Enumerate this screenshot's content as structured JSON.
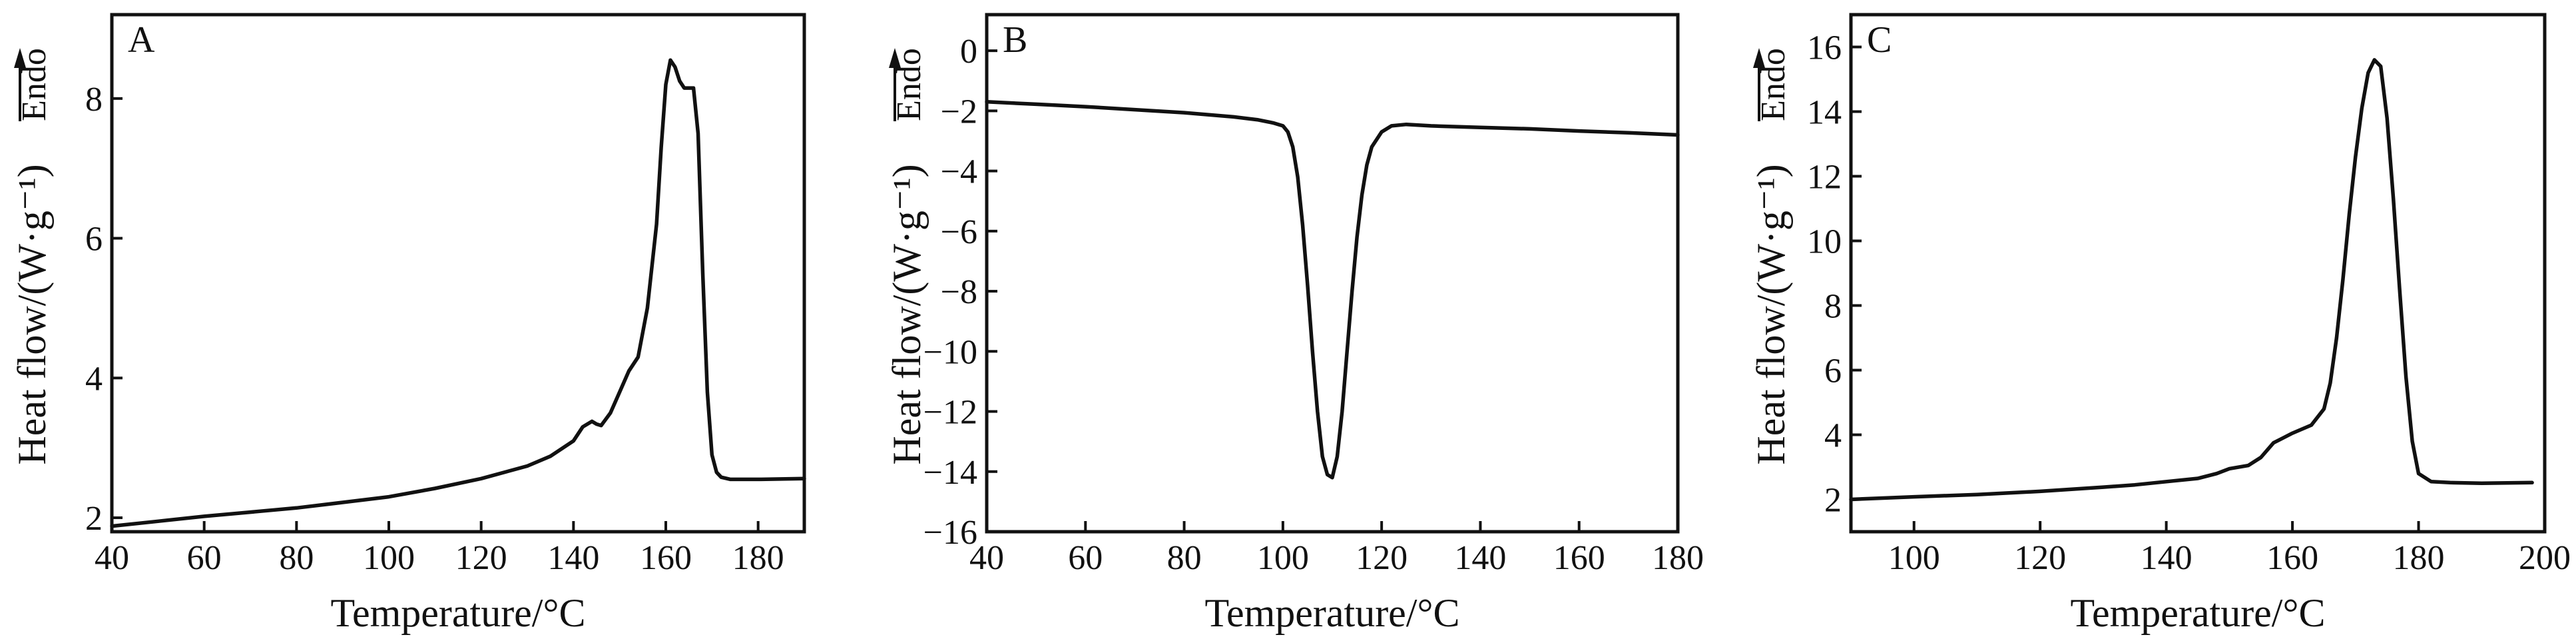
{
  "chart_data": [
    {
      "type": "line",
      "panel_label": "A",
      "xlabel": "Temperature/°C",
      "ylabel": "Heat flow/(W·g⁻¹)",
      "direction_label": "Endo",
      "xlim": [
        40,
        190
      ],
      "ylim": [
        1.8,
        9.2
      ],
      "xticks": [
        40,
        60,
        80,
        100,
        120,
        140,
        160,
        180
      ],
      "yticks": [
        2,
        4,
        6,
        8
      ],
      "grid": false,
      "series": [
        {
          "x": [
            40,
            50,
            60,
            70,
            80,
            90,
            100,
            110,
            120,
            130,
            135,
            140,
            142,
            144,
            145,
            146,
            148,
            150,
            152,
            154,
            156,
            158,
            159,
            160,
            161,
            162,
            163,
            164,
            166,
            167,
            168,
            169,
            170,
            171,
            172,
            174,
            180,
            190
          ],
          "y": [
            1.88,
            1.95,
            2.02,
            2.08,
            2.14,
            2.22,
            2.3,
            2.42,
            2.56,
            2.74,
            2.88,
            3.1,
            3.3,
            3.38,
            3.34,
            3.32,
            3.5,
            3.8,
            4.1,
            4.3,
            5.0,
            6.2,
            7.3,
            8.2,
            8.55,
            8.45,
            8.25,
            8.15,
            8.15,
            7.5,
            5.5,
            3.8,
            2.9,
            2.65,
            2.58,
            2.55,
            2.55,
            2.56
          ]
        }
      ]
    },
    {
      "type": "line",
      "panel_label": "B",
      "xlabel": "Temperature/°C",
      "ylabel": "Heat flow/(W·g⁻¹)",
      "direction_label": "Endo",
      "xlim": [
        40,
        180
      ],
      "ylim": [
        -16,
        1.2
      ],
      "xticks": [
        40,
        60,
        80,
        100,
        120,
        140,
        160,
        180
      ],
      "yticks": [
        0,
        -2,
        -4,
        -6,
        -8,
        -10,
        -12,
        -14,
        -16
      ],
      "grid": false,
      "series": [
        {
          "x": [
            40,
            50,
            60,
            70,
            80,
            90,
            95,
            98,
            100,
            101,
            102,
            103,
            104,
            105,
            106,
            107,
            108,
            109,
            110,
            111,
            112,
            113,
            114,
            115,
            116,
            117,
            118,
            120,
            122,
            125,
            130,
            140,
            150,
            160,
            170,
            180
          ],
          "y": [
            -1.7,
            -1.78,
            -1.86,
            -1.96,
            -2.06,
            -2.2,
            -2.3,
            -2.4,
            -2.5,
            -2.7,
            -3.2,
            -4.2,
            -5.8,
            -7.8,
            -10.0,
            -12.0,
            -13.5,
            -14.1,
            -14.2,
            -13.5,
            -12.0,
            -10.0,
            -8.0,
            -6.2,
            -4.8,
            -3.8,
            -3.2,
            -2.7,
            -2.5,
            -2.45,
            -2.5,
            -2.55,
            -2.6,
            -2.67,
            -2.73,
            -2.8
          ]
        }
      ]
    },
    {
      "type": "line",
      "panel_label": "C",
      "xlabel": "Temperature/°C",
      "ylabel": "Heat flow/(W·g⁻¹)",
      "direction_label": "Endo",
      "xlim": [
        90,
        200
      ],
      "ylim": [
        1.0,
        17.0
      ],
      "xticks": [
        100,
        120,
        140,
        160,
        180,
        200
      ],
      "yticks": [
        2,
        4,
        6,
        8,
        10,
        12,
        14,
        16
      ],
      "grid": false,
      "series": [
        {
          "x": [
            90,
            100,
            110,
            120,
            130,
            135,
            140,
            145,
            148,
            150,
            153,
            155,
            157,
            158,
            160,
            163,
            165,
            166,
            167,
            168,
            169,
            170,
            171,
            172,
            173,
            174,
            175,
            176,
            177,
            178,
            179,
            180,
            182,
            185,
            190,
            198
          ],
          "y": [
            2.0,
            2.08,
            2.15,
            2.25,
            2.38,
            2.45,
            2.55,
            2.65,
            2.8,
            2.95,
            3.05,
            3.3,
            3.75,
            3.85,
            4.05,
            4.3,
            4.8,
            5.6,
            7.0,
            8.8,
            10.8,
            12.6,
            14.1,
            15.2,
            15.6,
            15.4,
            13.8,
            11.3,
            8.5,
            5.8,
            3.8,
            2.8,
            2.55,
            2.52,
            2.5,
            2.52
          ]
        }
      ]
    }
  ]
}
